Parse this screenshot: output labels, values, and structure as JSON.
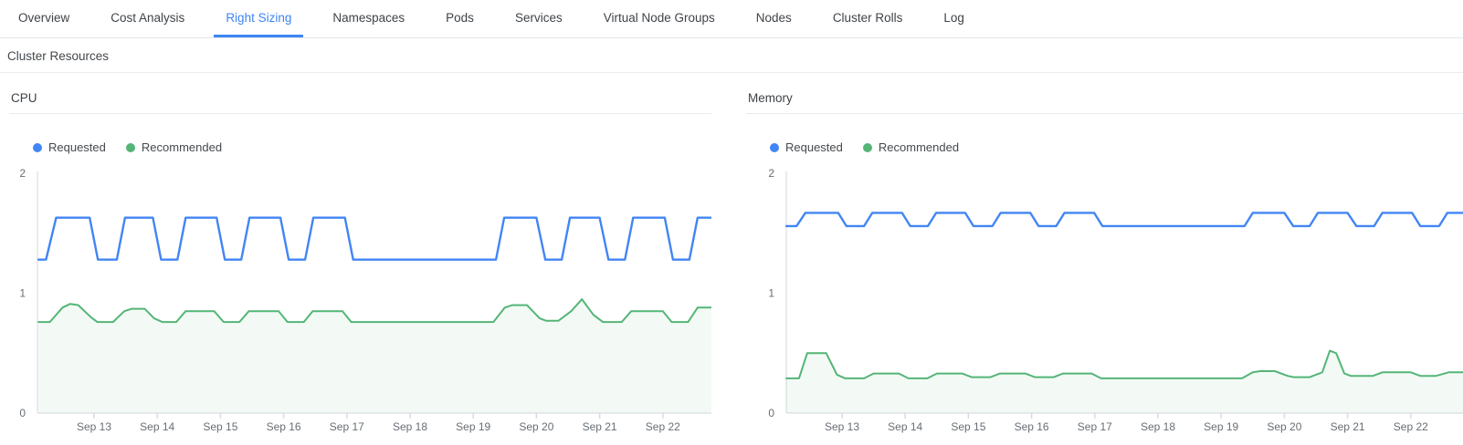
{
  "tabs": {
    "items": [
      {
        "label": "Overview",
        "active": false
      },
      {
        "label": "Cost Analysis",
        "active": false
      },
      {
        "label": "Right Sizing",
        "active": true
      },
      {
        "label": "Namespaces",
        "active": false
      },
      {
        "label": "Pods",
        "active": false
      },
      {
        "label": "Services",
        "active": false
      },
      {
        "label": "Virtual Node Groups",
        "active": false
      },
      {
        "label": "Nodes",
        "active": false
      },
      {
        "label": "Cluster Rolls",
        "active": false
      },
      {
        "label": "Log",
        "active": false
      }
    ],
    "active_color": "#3d85f4"
  },
  "section": {
    "title": "Cluster Resources"
  },
  "chart_data": [
    {
      "type": "line",
      "title": "CPU",
      "xlabel": "",
      "ylabel": "",
      "ylim": [
        0,
        2
      ],
      "y_ticks": [
        "0",
        "1",
        "2"
      ],
      "x_tick_days": [
        13,
        14,
        15,
        16,
        17,
        18,
        19,
        20,
        21,
        22
      ],
      "x_tick_labels": [
        "Sep 13",
        "Sep 14",
        "Sep 15",
        "Sep 16",
        "Sep 17",
        "Sep 18",
        "Sep 19",
        "Sep 20",
        "Sep 21",
        "Sep 22"
      ],
      "grid": false,
      "legend_position": "top-left",
      "series": [
        {
          "name": "Requested",
          "color": "#4285f4",
          "fill": false,
          "points": [
            [
              12.12,
              1.28
            ],
            [
              12.24,
              1.28
            ],
            [
              12.4,
              1.63
            ],
            [
              12.93,
              1.63
            ],
            [
              13.06,
              1.28
            ],
            [
              13.36,
              1.28
            ],
            [
              13.49,
              1.63
            ],
            [
              13.93,
              1.63
            ],
            [
              14.06,
              1.28
            ],
            [
              14.32,
              1.28
            ],
            [
              14.45,
              1.63
            ],
            [
              14.94,
              1.63
            ],
            [
              15.07,
              1.28
            ],
            [
              15.33,
              1.28
            ],
            [
              15.46,
              1.63
            ],
            [
              15.95,
              1.63
            ],
            [
              16.08,
              1.28
            ],
            [
              16.34,
              1.28
            ],
            [
              16.47,
              1.63
            ],
            [
              16.97,
              1.63
            ],
            [
              17.1,
              1.28
            ],
            [
              19.36,
              1.28
            ],
            [
              19.49,
              1.63
            ],
            [
              20.0,
              1.63
            ],
            [
              20.14,
              1.28
            ],
            [
              20.4,
              1.28
            ],
            [
              20.53,
              1.63
            ],
            [
              21.0,
              1.63
            ],
            [
              21.14,
              1.28
            ],
            [
              21.4,
              1.28
            ],
            [
              21.53,
              1.63
            ],
            [
              22.03,
              1.63
            ],
            [
              22.16,
              1.28
            ],
            [
              22.42,
              1.28
            ],
            [
              22.55,
              1.63
            ],
            [
              22.78,
              1.63
            ]
          ]
        },
        {
          "name": "Recommended",
          "color": "#54b577",
          "fill": true,
          "fill_color": "rgba(84,181,119,0.07)",
          "points": [
            [
              12.12,
              0.76
            ],
            [
              12.3,
              0.76
            ],
            [
              12.5,
              0.88
            ],
            [
              12.62,
              0.91
            ],
            [
              12.75,
              0.9
            ],
            [
              12.95,
              0.8
            ],
            [
              13.05,
              0.76
            ],
            [
              13.3,
              0.76
            ],
            [
              13.48,
              0.85
            ],
            [
              13.6,
              0.87
            ],
            [
              13.8,
              0.87
            ],
            [
              13.95,
              0.79
            ],
            [
              14.08,
              0.76
            ],
            [
              14.3,
              0.76
            ],
            [
              14.45,
              0.85
            ],
            [
              14.9,
              0.85
            ],
            [
              15.05,
              0.76
            ],
            [
              15.3,
              0.76
            ],
            [
              15.45,
              0.85
            ],
            [
              15.92,
              0.85
            ],
            [
              16.06,
              0.76
            ],
            [
              16.32,
              0.76
            ],
            [
              16.46,
              0.85
            ],
            [
              16.93,
              0.85
            ],
            [
              17.07,
              0.76
            ],
            [
              19.32,
              0.76
            ],
            [
              19.5,
              0.88
            ],
            [
              19.62,
              0.9
            ],
            [
              19.85,
              0.9
            ],
            [
              20.05,
              0.79
            ],
            [
              20.15,
              0.77
            ],
            [
              20.35,
              0.77
            ],
            [
              20.55,
              0.85
            ],
            [
              20.72,
              0.95
            ],
            [
              20.9,
              0.82
            ],
            [
              21.05,
              0.76
            ],
            [
              21.35,
              0.76
            ],
            [
              21.5,
              0.85
            ],
            [
              22.0,
              0.85
            ],
            [
              22.14,
              0.76
            ],
            [
              22.4,
              0.76
            ],
            [
              22.55,
              0.88
            ],
            [
              22.78,
              0.88
            ]
          ]
        }
      ]
    },
    {
      "type": "line",
      "title": "Memory",
      "xlabel": "",
      "ylabel": "",
      "ylim": [
        0,
        2
      ],
      "y_ticks": [
        "0",
        "1",
        "2"
      ],
      "x_tick_days": [
        13,
        14,
        15,
        16,
        17,
        18,
        19,
        20,
        21,
        22
      ],
      "x_tick_labels": [
        "Sep 13",
        "Sep 14",
        "Sep 15",
        "Sep 16",
        "Sep 17",
        "Sep 18",
        "Sep 19",
        "Sep 20",
        "Sep 21",
        "Sep 22"
      ],
      "grid": false,
      "legend_position": "top-left",
      "series": [
        {
          "name": "Requested",
          "color": "#4285f4",
          "fill": false,
          "points": [
            [
              12.12,
              1.56
            ],
            [
              12.28,
              1.56
            ],
            [
              12.42,
              1.67
            ],
            [
              12.94,
              1.67
            ],
            [
              13.07,
              1.56
            ],
            [
              13.35,
              1.56
            ],
            [
              13.48,
              1.67
            ],
            [
              13.95,
              1.67
            ],
            [
              14.08,
              1.56
            ],
            [
              14.36,
              1.56
            ],
            [
              14.49,
              1.67
            ],
            [
              14.95,
              1.67
            ],
            [
              15.08,
              1.56
            ],
            [
              15.38,
              1.56
            ],
            [
              15.51,
              1.67
            ],
            [
              15.98,
              1.67
            ],
            [
              16.11,
              1.56
            ],
            [
              16.39,
              1.56
            ],
            [
              16.52,
              1.67
            ],
            [
              16.99,
              1.67
            ],
            [
              17.12,
              1.56
            ],
            [
              19.37,
              1.56
            ],
            [
              19.5,
              1.67
            ],
            [
              20.0,
              1.67
            ],
            [
              20.14,
              1.56
            ],
            [
              20.4,
              1.56
            ],
            [
              20.53,
              1.67
            ],
            [
              21.0,
              1.67
            ],
            [
              21.14,
              1.56
            ],
            [
              21.42,
              1.56
            ],
            [
              21.55,
              1.67
            ],
            [
              22.02,
              1.67
            ],
            [
              22.15,
              1.56
            ],
            [
              22.45,
              1.56
            ],
            [
              22.58,
              1.67
            ],
            [
              22.83,
              1.67
            ]
          ]
        },
        {
          "name": "Recommended",
          "color": "#54b577",
          "fill": true,
          "fill_color": "rgba(84,181,119,0.07)",
          "points": [
            [
              12.12,
              0.29
            ],
            [
              12.32,
              0.29
            ],
            [
              12.45,
              0.5
            ],
            [
              12.75,
              0.5
            ],
            [
              12.92,
              0.32
            ],
            [
              13.05,
              0.29
            ],
            [
              13.35,
              0.29
            ],
            [
              13.5,
              0.33
            ],
            [
              13.9,
              0.33
            ],
            [
              14.05,
              0.29
            ],
            [
              14.35,
              0.29
            ],
            [
              14.5,
              0.33
            ],
            [
              14.9,
              0.33
            ],
            [
              15.05,
              0.3
            ],
            [
              15.35,
              0.3
            ],
            [
              15.5,
              0.33
            ],
            [
              15.9,
              0.33
            ],
            [
              16.05,
              0.3
            ],
            [
              16.35,
              0.3
            ],
            [
              16.5,
              0.33
            ],
            [
              16.95,
              0.33
            ],
            [
              17.1,
              0.29
            ],
            [
              19.33,
              0.29
            ],
            [
              19.5,
              0.34
            ],
            [
              19.62,
              0.35
            ],
            [
              19.85,
              0.35
            ],
            [
              20.05,
              0.31
            ],
            [
              20.15,
              0.3
            ],
            [
              20.4,
              0.3
            ],
            [
              20.6,
              0.34
            ],
            [
              20.72,
              0.52
            ],
            [
              20.82,
              0.5
            ],
            [
              20.95,
              0.33
            ],
            [
              21.05,
              0.31
            ],
            [
              21.4,
              0.31
            ],
            [
              21.55,
              0.34
            ],
            [
              22.0,
              0.34
            ],
            [
              22.15,
              0.31
            ],
            [
              22.4,
              0.31
            ],
            [
              22.6,
              0.34
            ],
            [
              22.83,
              0.34
            ]
          ]
        }
      ]
    }
  ],
  "chart_colors": {
    "axis_line": "#e2e5e9",
    "tick_mark": "#d7dbe0",
    "tick_text": "#686e74"
  }
}
